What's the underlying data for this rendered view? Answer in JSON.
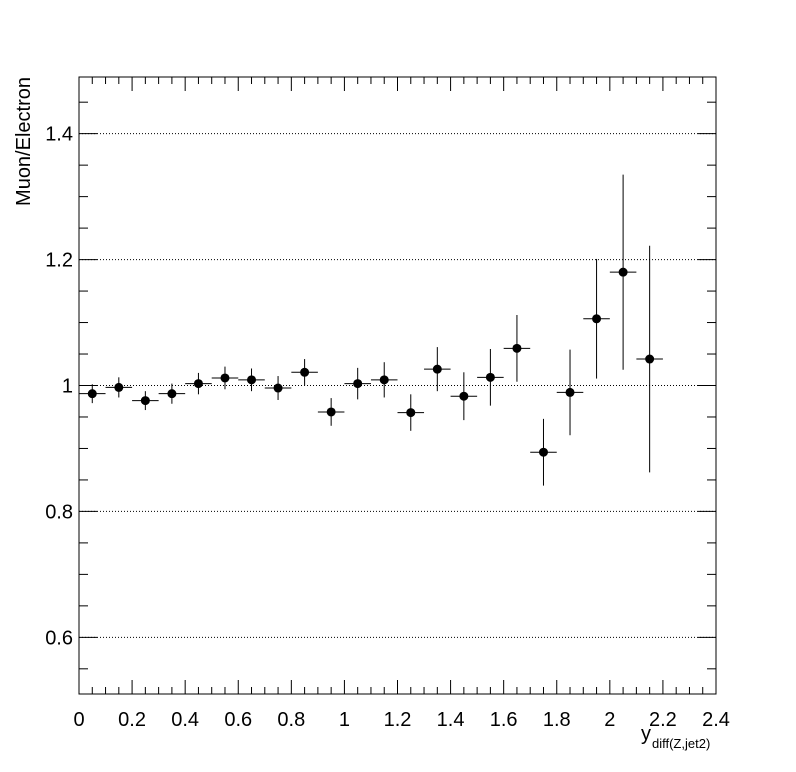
{
  "chart_data": {
    "type": "scatter",
    "title": "",
    "xlabel": "y",
    "xlabel_subscript": "diff(Z,jet2)",
    "ylabel": "Muon/Electron",
    "xlim": [
      0,
      2.4
    ],
    "ylim": [
      0.51,
      1.49
    ],
    "x_ticks": [
      0,
      0.2,
      0.4,
      0.6,
      0.8,
      1,
      1.2,
      1.4,
      1.6,
      1.8,
      2,
      2.2,
      2.4
    ],
    "x_tick_labels": [
      "0",
      "0.2",
      "0.4",
      "0.6",
      "0.8",
      "1",
      "1.2",
      "1.4",
      "1.6",
      "1.8",
      "2",
      "2.2",
      "2.4"
    ],
    "y_ticks": [
      0.6,
      0.8,
      1,
      1.2,
      1.4
    ],
    "y_tick_labels": [
      "0.6",
      "0.8",
      "1",
      "1.2",
      "1.4"
    ],
    "grid": "horizontal-dotted",
    "marker_color": "#000000",
    "points": [
      {
        "x": 0.05,
        "xerr": 0.05,
        "y": 0.987,
        "yerr": 0.015
      },
      {
        "x": 0.15,
        "xerr": 0.05,
        "y": 0.997,
        "yerr": 0.016
      },
      {
        "x": 0.25,
        "xerr": 0.05,
        "y": 0.976,
        "yerr": 0.015
      },
      {
        "x": 0.35,
        "xerr": 0.05,
        "y": 0.987,
        "yerr": 0.016
      },
      {
        "x": 0.45,
        "xerr": 0.05,
        "y": 1.003,
        "yerr": 0.017
      },
      {
        "x": 0.55,
        "xerr": 0.05,
        "y": 1.012,
        "yerr": 0.018
      },
      {
        "x": 0.65,
        "xerr": 0.05,
        "y": 1.009,
        "yerr": 0.018
      },
      {
        "x": 0.75,
        "xerr": 0.05,
        "y": 0.996,
        "yerr": 0.019
      },
      {
        "x": 0.85,
        "xerr": 0.05,
        "y": 1.021,
        "yerr": 0.021
      },
      {
        "x": 0.95,
        "xerr": 0.05,
        "y": 0.958,
        "yerr": 0.022
      },
      {
        "x": 1.05,
        "xerr": 0.05,
        "y": 1.003,
        "yerr": 0.025
      },
      {
        "x": 1.15,
        "xerr": 0.05,
        "y": 1.009,
        "yerr": 0.028
      },
      {
        "x": 1.25,
        "xerr": 0.05,
        "y": 0.957,
        "yerr": 0.029
      },
      {
        "x": 1.35,
        "xerr": 0.05,
        "y": 1.026,
        "yerr": 0.035
      },
      {
        "x": 1.45,
        "xerr": 0.05,
        "y": 0.983,
        "yerr": 0.038
      },
      {
        "x": 1.55,
        "xerr": 0.05,
        "y": 1.013,
        "yerr": 0.045
      },
      {
        "x": 1.65,
        "xerr": 0.05,
        "y": 1.059,
        "yerr": 0.053
      },
      {
        "x": 1.75,
        "xerr": 0.05,
        "y": 0.894,
        "yerr": 0.053
      },
      {
        "x": 1.85,
        "xerr": 0.05,
        "y": 0.989,
        "yerr": 0.068
      },
      {
        "x": 1.95,
        "xerr": 0.05,
        "y": 1.106,
        "yerr": 0.095
      },
      {
        "x": 2.05,
        "xerr": 0.05,
        "y": 1.18,
        "yerr": 0.155
      },
      {
        "x": 2.15,
        "xerr": 0.05,
        "y": 1.042,
        "yerr": 0.18
      }
    ]
  }
}
